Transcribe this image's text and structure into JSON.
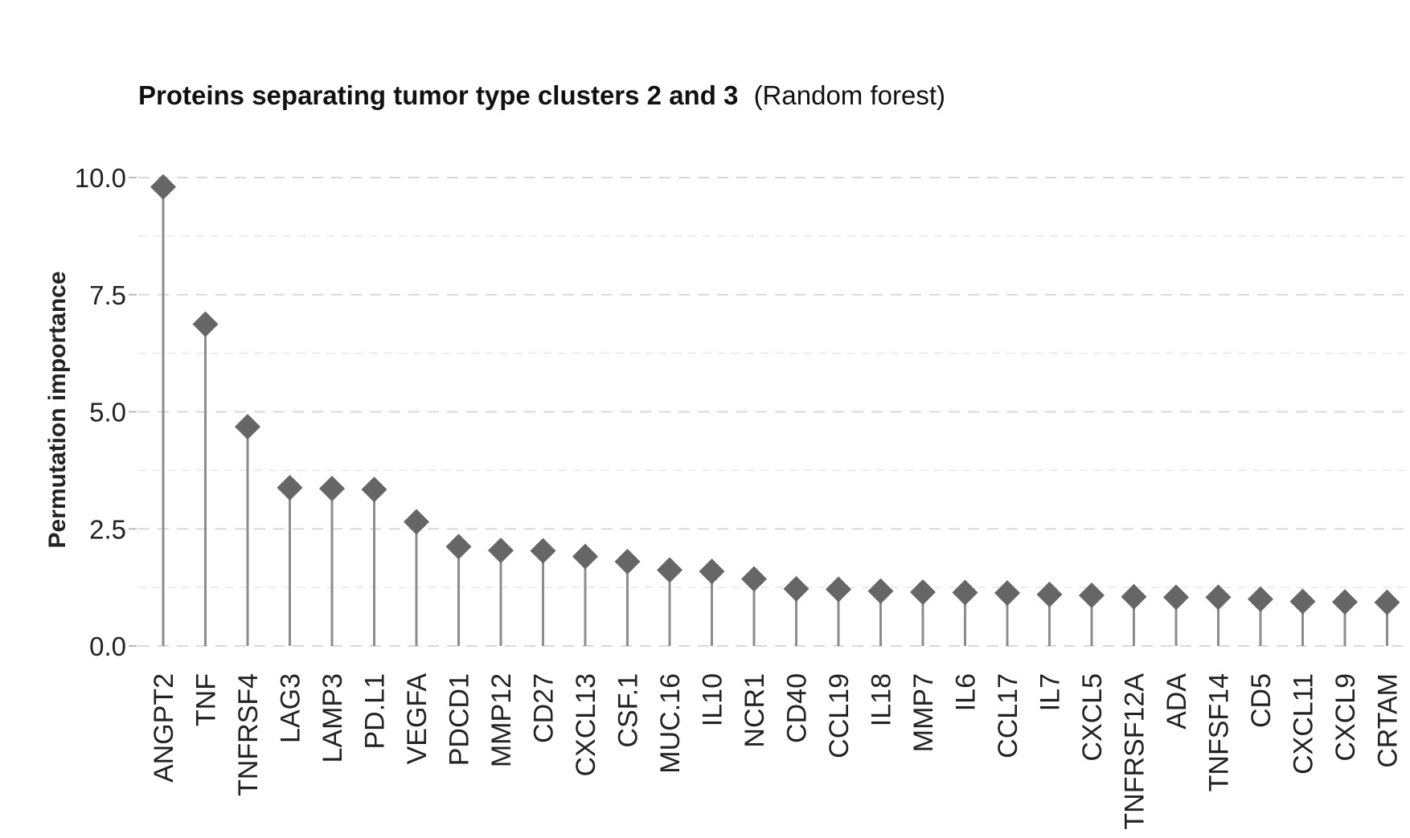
{
  "chart_data": {
    "type": "scatter",
    "title": "Proteins separating tumor type clusters 2 and 3",
    "subtitle": "(Random forest)",
    "xlabel": "",
    "ylabel": "Permutation importance",
    "ylim": [
      0,
      10.4
    ],
    "yticks": [
      0,
      2.5,
      5,
      7.5,
      10
    ],
    "ytick_labels": [
      "0.0",
      "2.5",
      "5.0",
      "7.5",
      "10.0"
    ],
    "grid": true,
    "categories": [
      "ANGPT2",
      "TNF",
      "TNFRSF4",
      "LAG3",
      "LAMP3",
      "PD.L1",
      "VEGFA",
      "PDCD1",
      "MMP12",
      "CD27",
      "CXCL13",
      "CSF.1",
      "MUC.16",
      "IL10",
      "NCR1",
      "CD40",
      "CCL19",
      "IL18",
      "MMP7",
      "IL6",
      "CCL17",
      "IL7",
      "CXCL5",
      "TNFRSF12A",
      "ADA",
      "TNFSF14",
      "CD5",
      "CXCL11",
      "CXCL9",
      "CRTAM"
    ],
    "values": [
      9.8,
      6.87,
      4.68,
      3.38,
      3.36,
      3.34,
      2.65,
      2.12,
      2.04,
      2.03,
      1.91,
      1.8,
      1.62,
      1.59,
      1.43,
      1.22,
      1.21,
      1.17,
      1.15,
      1.14,
      1.13,
      1.1,
      1.08,
      1.05,
      1.04,
      1.04,
      1.0,
      0.95,
      0.94,
      0.93
    ],
    "marker": "diamond",
    "colors": {
      "point": "#666666",
      "stem": "#8c8c8c",
      "grid": "#d9d9d9"
    }
  }
}
